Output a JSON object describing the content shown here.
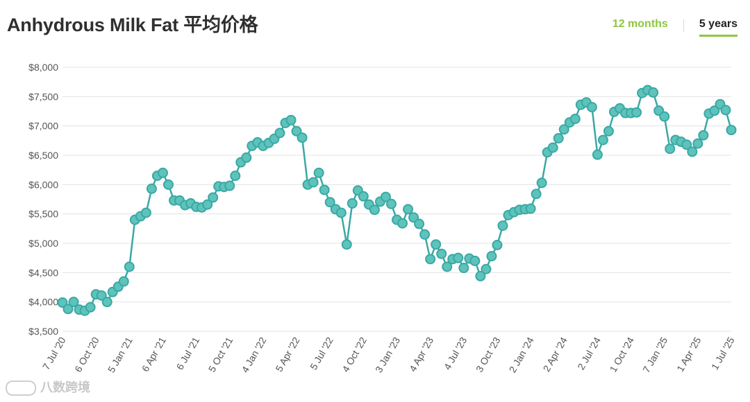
{
  "header": {
    "title": "Anhydrous Milk Fat 平均价格",
    "tab_12_months": "12 months",
    "tab_5_years": "5 years"
  },
  "watermark": {
    "text": "八数跨境"
  },
  "colors": {
    "series": "#3aa8a4",
    "marker_fill": "#5ec3bb",
    "grid": "#e3e3e3",
    "accent": "#8dc63f"
  },
  "chart_data": {
    "type": "line",
    "title": "Anhydrous Milk Fat 平均价格",
    "xlabel": "",
    "ylabel": "",
    "ylim": [
      3500,
      8000
    ],
    "grid": true,
    "y_ticks": [
      3500,
      4000,
      4500,
      5000,
      5500,
      6000,
      6500,
      7000,
      7500,
      8000
    ],
    "y_tick_labels": [
      "$3,500",
      "$4,000",
      "$4,500",
      "$5,000",
      "$5,500",
      "$6,000",
      "$6,500",
      "$7,000",
      "$7,500",
      "$8,000"
    ],
    "x_tick_labels": [
      "7 Jul '20",
      "6 Oct '20",
      "5 Jan '21",
      "6 Apr '21",
      "6 Jul '21",
      "5 Oct '21",
      "4 Jan '22",
      "5 Apr '22",
      "5 Jul '22",
      "4 Oct '22",
      "3 Jan '23",
      "4 Apr '23",
      "4 Jul '23",
      "3 Oct '23",
      "2 Jan '24",
      "2 Apr '24",
      "2 Jul '24",
      "1 Oct '24",
      "7 Jan '25",
      "1 Apr '25",
      "1 Jul '25"
    ],
    "x_tick_points": [
      0,
      6,
      12,
      18,
      24,
      30,
      36,
      42,
      48,
      54,
      60,
      66,
      72,
      78,
      84,
      90,
      96,
      102,
      108,
      114,
      120
    ],
    "series": [
      {
        "values": [
          3990,
          3880,
          4000,
          3870,
          3850,
          3910,
          4130,
          4110,
          4000,
          4170,
          4260,
          4350,
          4600,
          5400,
          5460,
          5520,
          5930,
          6150,
          6200,
          6000,
          5730,
          5730,
          5650,
          5680,
          5620,
          5610,
          5660,
          5780,
          5970,
          5960,
          5980,
          6150,
          6380,
          6460,
          6660,
          6720,
          6660,
          6710,
          6780,
          6880,
          7050,
          7100,
          6910,
          6800,
          6000,
          6040,
          6200,
          5910,
          5700,
          5580,
          5520,
          4980,
          5680,
          5900,
          5800,
          5660,
          5570,
          5710,
          5790,
          5670,
          5400,
          5340,
          5580,
          5440,
          5330,
          5150,
          4730,
          4980,
          4820,
          4600,
          4730,
          4750,
          4580,
          4740,
          4700,
          4440,
          4560,
          4780,
          4970,
          5300,
          5480,
          5530,
          5570,
          5580,
          5590,
          5840,
          6030,
          6550,
          6630,
          6790,
          6940,
          7060,
          7120,
          7360,
          7400,
          7320,
          6510,
          6760,
          6910,
          7240,
          7300,
          7220,
          7220,
          7230,
          7560,
          7610,
          7570,
          7260,
          7160,
          6610,
          6760,
          6730,
          6680,
          6560,
          6700,
          6840,
          7210,
          7260,
          7370,
          7270,
          6930
        ]
      }
    ]
  }
}
